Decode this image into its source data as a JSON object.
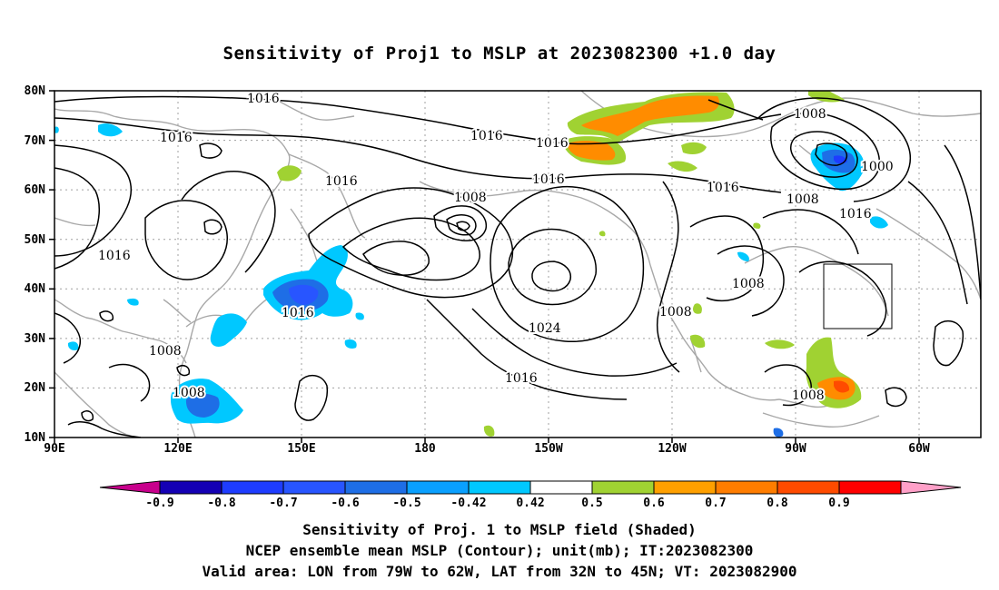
{
  "title": "Sensitivity of Proj1 to MSLP at 2023082300 +1.0 day",
  "lat_labels": [
    "80N",
    "70N",
    "60N",
    "50N",
    "40N",
    "30N",
    "20N",
    "10N"
  ],
  "lon_labels": [
    "90E",
    "120E",
    "150E",
    "180",
    "150W",
    "120W",
    "90W",
    "60W"
  ],
  "contour_labels": [
    "1016",
    "1016",
    "1016",
    "1016",
    "1016",
    "1016",
    "1016",
    "1016",
    "1016",
    "1016",
    "1016",
    "1008",
    "1008",
    "1008",
    "1008",
    "1008",
    "1008",
    "1008",
    "1024",
    "1000"
  ],
  "colorbar": {
    "labels": [
      "-0.9",
      "-0.8",
      "-0.7",
      "-0.6",
      "-0.5",
      "-0.42",
      "0.42",
      "0.5",
      "0.6",
      "0.7",
      "0.8",
      "0.9"
    ],
    "colors": [
      "#c8008c",
      "#1400b4",
      "#1e3cff",
      "#2855ff",
      "#1e6ee6",
      "#0aa0ff",
      "#00c8ff",
      "#ffffff",
      "#a0d232",
      "#ffa000",
      "#ff7d00",
      "#ff4b00",
      "#ff0000",
      "#ffa0c8"
    ]
  },
  "captions": {
    "line1": "Sensitivity of Proj. 1 to MSLP field (Shaded)",
    "line2": "NCEP ensemble mean MSLP (Contour); unit(mb); IT:2023082300",
    "line3": "Valid area: LON from 79W to 62W, LAT from 32N to 45N; VT: 2023082900"
  }
}
